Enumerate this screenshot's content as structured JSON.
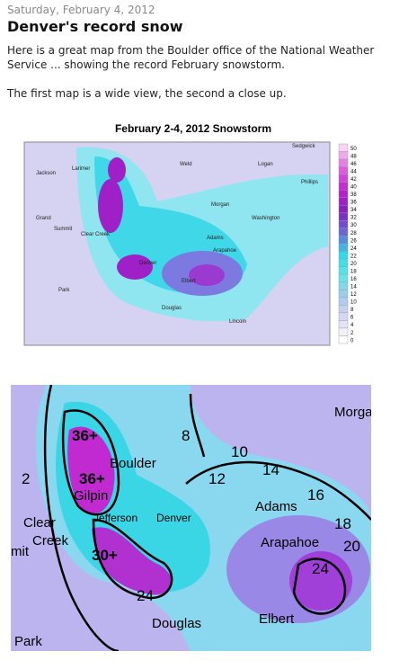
{
  "post": {
    "date": "Saturday, February 4, 2012",
    "title": "Denver's record snow",
    "paragraphs": [
      "Here is a great map from the Boulder office of the National Weather Service ... showing the record February snowstorm.",
      "The first map is a wide view, the second a close up."
    ]
  },
  "map1": {
    "title": "February 2-4, 2012 Snowstorm",
    "legend": [
      "50",
      "48",
      "46",
      "44",
      "42",
      "40",
      "38",
      "36",
      "34",
      "32",
      "30",
      "28",
      "26",
      "24",
      "22",
      "20",
      "18",
      "16",
      "14",
      "12",
      "10",
      "8",
      "6",
      "4",
      "2",
      "0"
    ],
    "places": [
      "Weld",
      "Logan",
      "Sedgwick",
      "Phillips",
      "Jackson",
      "Larimer",
      "Morgan",
      "Washington",
      "Grand",
      "Adams",
      "Arapahoe",
      "Elbert",
      "Park",
      "Lincoln",
      "Summit",
      "Clear Creek",
      "Denver",
      "Douglas"
    ]
  },
  "map2": {
    "places": [
      "Morga",
      "Boulder",
      "Gilpin",
      "Clear",
      "Creek",
      "mit",
      "Jefferson",
      "Denver",
      "Adams",
      "Arapahoe",
      "Douglas",
      "Elbert",
      "Park"
    ],
    "contours": [
      "36+",
      "36+",
      "30+",
      "8",
      "10",
      "12",
      "14",
      "16",
      "18",
      "20",
      "24",
      "24",
      "2"
    ]
  }
}
